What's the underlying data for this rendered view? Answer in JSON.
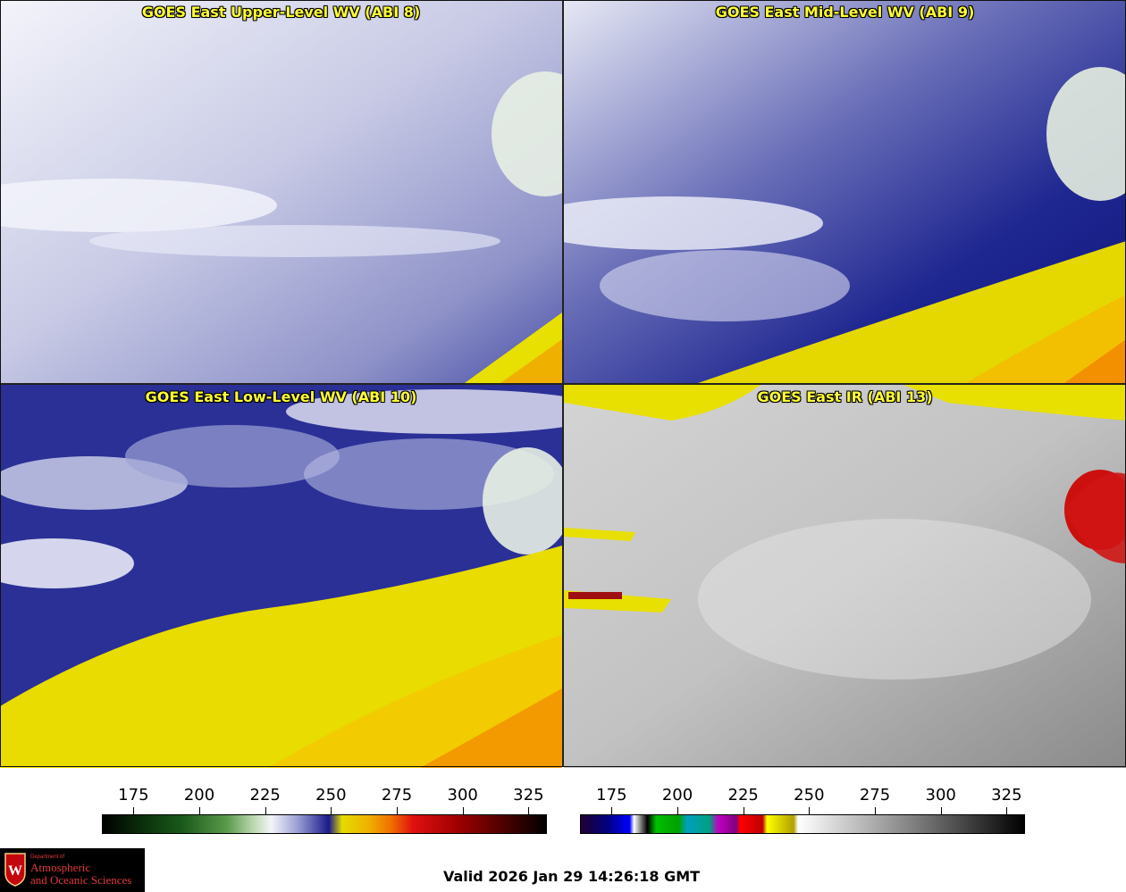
{
  "panels": [
    {
      "title": "GOES East Upper-Level WV (ABI 8)"
    },
    {
      "title": "GOES East Mid-Level WV (ABI 9)"
    },
    {
      "title": "GOES East Low-Level WV (ABI 10)"
    },
    {
      "title": "GOES East IR (ABI 13)"
    }
  ],
  "colorbars": {
    "wv": {
      "ticks": [
        "175",
        "200",
        "225",
        "250",
        "275",
        "300",
        "325"
      ],
      "min": 163,
      "max": 332
    },
    "ir": {
      "ticks": [
        "175",
        "200",
        "225",
        "250",
        "275",
        "300",
        "325"
      ],
      "min": 163,
      "max": 332
    }
  },
  "footer": {
    "valid": "Valid 2026 Jan 29 14:26:18 GMT",
    "logo_dept": "Department of",
    "logo_line1": "Atmospheric",
    "logo_line2": "and Oceanic Sciences",
    "logo_letter": "W"
  },
  "colors": {
    "state_borders": "#e02020",
    "coastlines": "#6b4a10",
    "international_border": "#1a8a1a",
    "title_text": "#ffff33",
    "wv_moist": "#f2f4fa",
    "wv_dry_blue": "#1c2290",
    "wv_very_dry": "#f5e600",
    "ir_cloud": "#d8d8d8",
    "ir_cold_top": "#cc1010"
  }
}
